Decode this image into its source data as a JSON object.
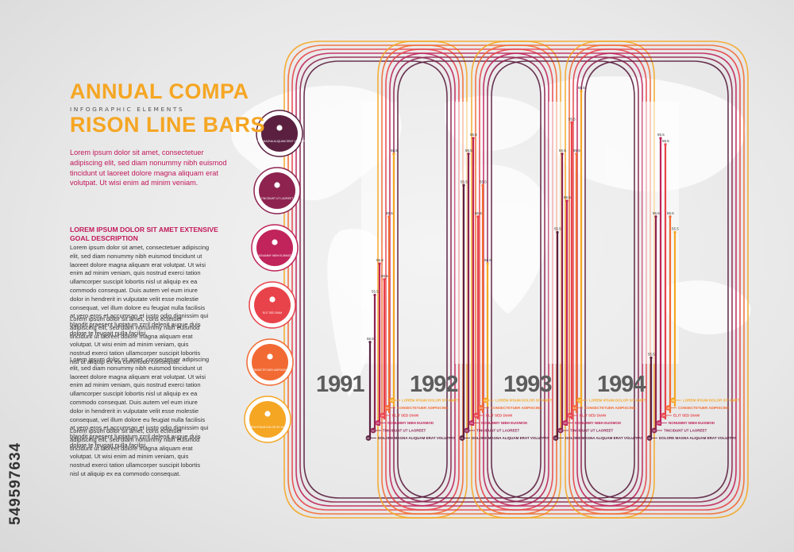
{
  "header": {
    "title_line1": "ANNUAL COMPA",
    "subtitle": "INFOGRAPHIC ELEMENTS",
    "title_line2": "RISON LINE BARS",
    "intro": "Lorem ipsum dolor sit amet, consectetuer adipiscing elit, sed diam nonummy nibh euismod tincidunt ut laoreet dolore magna aliquam erat volutpat. Ut wisi enim ad minim veniam."
  },
  "side": {
    "goal_heading": "LOREM IPSUM DOLOR SIT AMET EXTENSIVE GOAL DESCRIPTION",
    "paragraphs": [
      "Lorem ipsum dolor sit amet, consectetuer adipiscing elit, sed diam nonummy nibh euismod tincidunt ut laoreet dolore magna aliquam erat volutpat. Ut wisi enim ad minim veniam, quis nostrud exerci tation ullamcorper suscipit lobortis nisl ut aliquip ex ea commodo consequat. Duis autem vel eum iriure dolor in hendrerit in vulputate velit esse molestie consequat, vel illum dolore eu feugiat nulla facilisis at vero eros et accumsan et iusto odio dignissim qui blandit praesent luptatum zzril delenit augue duis dolore te feugait nulla facilisi.",
      "Lorem ipsum dolor sit amet, cons ectetuer adipiscing elit, sed diam nonummy nibh euismod tincidunt ut laoreet dolore magna aliquam erat volutpat. Ut wisi enim ad minim veniam, quis nostrud exerci tation ullamcorper suscipit lobortis nisl ut aliquip ex ea commodo consequat.",
      "Lorem ipsum dolor sit amet, consectetuer adipiscing elit, sed diam nonummy nibh euismod tincidunt ut laoreet dolore magna aliquam erat volutpat. Ut wisi enim ad minim veniam, quis nostrud exerci tation ullamcorper suscipit lobortis nisl ut aliquip ex ea commodo consequat. Duis autem vel eum iriure dolor in hendrerit in vulputate velit esse molestie consequat, vel illum dolore eu feugiat nulla facilisis at vero eros et accumsan et iusto odio dignissim qui blandit praesent luptatum zzril delenit augue duis dolore te feugait nulla facilisi.",
      "Lorem ipsum dolor sit amet, cons ectetuer adipiscing elit, sed diam nonummy nibh euismod tincidunt ut laoreet dolore magna aliquam erat volutpat. Ut wisi enim ad minim veniam, quis nostrud exerci tation ullamcorper suscipit lobortis nisl ut aliquip ex ea commodo consequat."
    ]
  },
  "icons": [
    {
      "icon": "people-icon",
      "label": "DOLORE MAGNA ALIQUAM ERAT VOLUTPAT",
      "color": "#5b2040"
    },
    {
      "icon": "clock-icon",
      "label": "TINCIDUNT UT LAOREET",
      "color": "#8e2350"
    },
    {
      "icon": "user-icon",
      "label": "NONUMMY NIBH EUISMOD",
      "color": "#c0245a"
    },
    {
      "icon": "cloud-icon",
      "label": "ELIT SED DIAM",
      "color": "#e8434a"
    },
    {
      "icon": "globe-icon",
      "label": "CONSECTETUER ADIPISCING",
      "color": "#f26a33"
    },
    {
      "icon": "pills-icon",
      "label": "LOREM IPSUM DOLOR SIT AMET",
      "color": "#f5a623"
    }
  ],
  "watermark": "549597634",
  "chart_data": {
    "type": "bar",
    "categories": [
      "1991",
      "1992",
      "1993",
      "1994"
    ],
    "series": [
      {
        "name": "DOLORE MAGNA ALIQUAM ERAT VOLUTPAT",
        "color": "#5b2040",
        "values": [
          15,
          65,
          50,
          10
        ]
      },
      {
        "name": "TINCIDUNT UT LAOREET",
        "color": "#8e2350",
        "values": [
          30,
          75,
          75,
          55
        ]
      },
      {
        "name": "NONUMMY NIBH EUISMOD",
        "color": "#c0245a",
        "values": [
          40,
          80,
          60,
          80
        ]
      },
      {
        "name": "ELIT SED DIAM",
        "color": "#e8434a",
        "values": [
          35,
          55,
          85,
          78
        ]
      },
      {
        "name": "CONSECTETUER ADIPISCING",
        "color": "#f26a33",
        "values": [
          55,
          65,
          75,
          55
        ]
      },
      {
        "name": "LOREM IPSUM DOLOR SIT AMET",
        "color": "#f5a623",
        "values": [
          75,
          40,
          95,
          50
        ]
      }
    ],
    "value_label": "55.5",
    "marker_labels": [
      "06",
      "05",
      "04",
      "03",
      "02",
      "01"
    ],
    "legend_labels": [
      "LOREM IPSUM DOLOR SIT AMET",
      "CONSECTETUER ADIPISCING",
      "ELIT SED DIAM",
      "NONUMMY NIBH EUISMOD",
      "TINCIDUNT UT LAOREET",
      "DOLORE MAGNA ALIQUAM ERAT VOLUTPAT"
    ],
    "ylim": [
      0,
      100
    ],
    "grid": false,
    "legend": "bottom-right of each year"
  }
}
